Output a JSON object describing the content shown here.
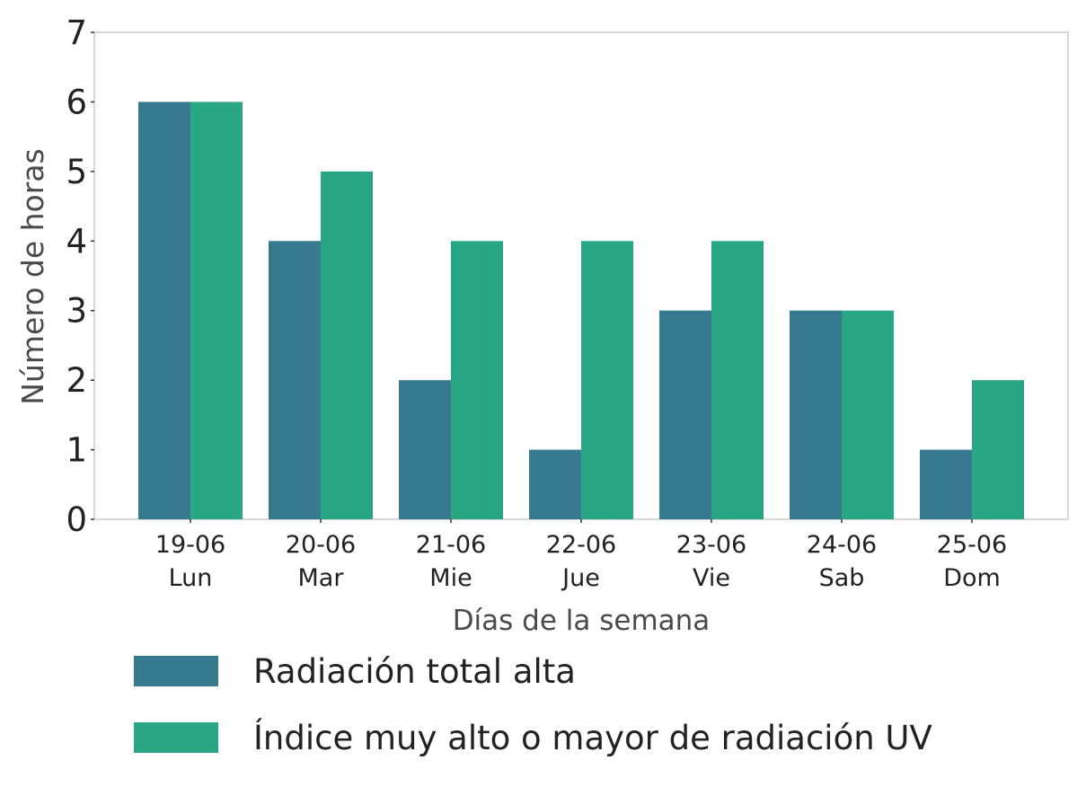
{
  "chart_data": {
    "type": "bar",
    "title": "",
    "xlabel": "Días de la semana",
    "ylabel": "Número de horas",
    "ylim": [
      0,
      7
    ],
    "yticks": [
      0,
      1,
      2,
      3,
      4,
      5,
      6,
      7
    ],
    "grid": false,
    "legend_position": "bottom",
    "categories": [
      {
        "date": "19-06",
        "day": "Lun"
      },
      {
        "date": "20-06",
        "day": "Mar"
      },
      {
        "date": "21-06",
        "day": "Mie"
      },
      {
        "date": "22-06",
        "day": "Jue"
      },
      {
        "date": "23-06",
        "day": "Vie"
      },
      {
        "date": "24-06",
        "day": "Sab"
      },
      {
        "date": "25-06",
        "day": "Dom"
      }
    ],
    "series": [
      {
        "name": "Radiación total alta",
        "color": "#37798f",
        "values": [
          6,
          4,
          2,
          1,
          3,
          3,
          1
        ]
      },
      {
        "name": "Índice muy alto o mayor de radiación UV",
        "color": "#29a684",
        "values": [
          6,
          5,
          4,
          4,
          4,
          3,
          2
        ]
      }
    ]
  }
}
